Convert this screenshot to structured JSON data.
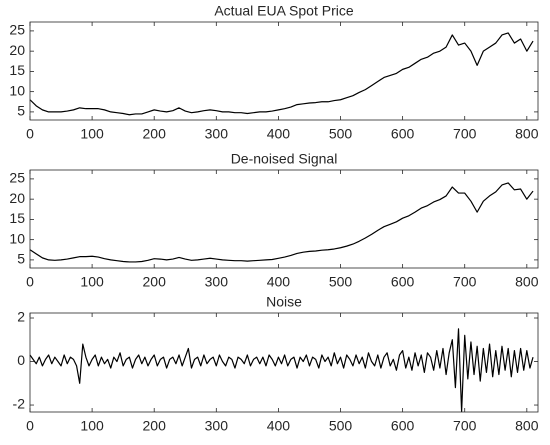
{
  "chart_data": [
    {
      "type": "line",
      "title": "Actual EUA Spot Price",
      "color": "#000000",
      "x": [
        0,
        10,
        20,
        30,
        40,
        50,
        60,
        70,
        80,
        90,
        100,
        110,
        120,
        130,
        140,
        150,
        160,
        170,
        180,
        190,
        200,
        210,
        220,
        230,
        240,
        250,
        260,
        270,
        280,
        290,
        300,
        310,
        320,
        330,
        340,
        350,
        360,
        370,
        380,
        390,
        400,
        410,
        420,
        430,
        440,
        450,
        460,
        470,
        480,
        490,
        500,
        510,
        520,
        530,
        540,
        550,
        560,
        570,
        580,
        590,
        600,
        610,
        620,
        630,
        640,
        650,
        660,
        670,
        680,
        690,
        700,
        710,
        720,
        730,
        740,
        750,
        760,
        770,
        780,
        790,
        800,
        810
      ],
      "values": [
        8,
        6.5,
        5.5,
        5,
        5,
        5,
        5.2,
        5.5,
        6,
        5.8,
        5.8,
        5.8,
        5.5,
        5,
        4.8,
        4.6,
        4.3,
        4.5,
        4.5,
        5,
        5.5,
        5.2,
        5,
        5.3,
        6,
        5.2,
        4.8,
        5,
        5.3,
        5.5,
        5.3,
        5,
        5,
        4.8,
        4.8,
        4.6,
        4.8,
        5,
        5,
        5.2,
        5.5,
        5.8,
        6.2,
        6.8,
        7,
        7.2,
        7.3,
        7.5,
        7.5,
        7.8,
        8,
        8.5,
        9,
        9.8,
        10.5,
        11.5,
        12.5,
        13.5,
        14,
        14.5,
        15.5,
        16,
        17,
        18,
        18.5,
        19.5,
        20,
        21,
        24,
        21.5,
        22,
        20,
        16.5,
        20,
        21,
        22,
        24,
        24.5,
        22,
        23,
        20,
        22.5
      ],
      "xlim": [
        0,
        818
      ],
      "ylim": [
        3,
        27.2
      ],
      "xticks": [
        0,
        100,
        200,
        300,
        400,
        500,
        600,
        700,
        800
      ],
      "yticks": [
        5,
        10,
        15,
        20,
        25
      ]
    },
    {
      "type": "line",
      "title": "De-noised Signal",
      "color": "#000000",
      "x": [
        0,
        10,
        20,
        30,
        40,
        50,
        60,
        70,
        80,
        90,
        100,
        110,
        120,
        130,
        140,
        150,
        160,
        170,
        180,
        190,
        200,
        210,
        220,
        230,
        240,
        250,
        260,
        270,
        280,
        290,
        300,
        310,
        320,
        330,
        340,
        350,
        360,
        370,
        380,
        390,
        400,
        410,
        420,
        430,
        440,
        450,
        460,
        470,
        480,
        490,
        500,
        510,
        520,
        530,
        540,
        550,
        560,
        570,
        580,
        590,
        600,
        610,
        620,
        630,
        640,
        650,
        660,
        670,
        680,
        690,
        700,
        710,
        720,
        730,
        740,
        750,
        760,
        770,
        780,
        790,
        800,
        810
      ],
      "values": [
        7.5,
        6.5,
        5.5,
        5,
        4.9,
        5,
        5.2,
        5.5,
        5.8,
        5.8,
        5.9,
        5.7,
        5.3,
        5,
        4.8,
        4.6,
        4.5,
        4.5,
        4.6,
        4.9,
        5.3,
        5.2,
        5,
        5.2,
        5.6,
        5.2,
        4.9,
        5,
        5.2,
        5.4,
        5.2,
        5,
        4.9,
        4.8,
        4.8,
        4.7,
        4.8,
        4.9,
        5,
        5.1,
        5.4,
        5.7,
        6.1,
        6.6,
        6.9,
        7.1,
        7.2,
        7.4,
        7.5,
        7.7,
        8,
        8.4,
        8.9,
        9.6,
        10.4,
        11.3,
        12.3,
        13.2,
        13.8,
        14.4,
        15.3,
        15.9,
        16.8,
        17.8,
        18.4,
        19.3,
        19.9,
        20.8,
        23,
        21.5,
        21.5,
        19.5,
        16.8,
        19.5,
        20.8,
        21.8,
        23.5,
        24,
        22.3,
        22.5,
        20,
        22
      ],
      "xlim": [
        0,
        818
      ],
      "ylim": [
        3,
        27.2
      ],
      "xticks": [
        0,
        100,
        200,
        300,
        400,
        500,
        600,
        700,
        800
      ],
      "yticks": [
        5,
        10,
        15,
        20,
        25
      ]
    },
    {
      "type": "line",
      "title": "Noise",
      "color": "#000000",
      "x": [
        0,
        5,
        10,
        15,
        20,
        25,
        30,
        35,
        40,
        45,
        50,
        55,
        60,
        65,
        70,
        75,
        80,
        85,
        90,
        95,
        100,
        105,
        110,
        115,
        120,
        125,
        130,
        135,
        140,
        145,
        150,
        155,
        160,
        165,
        170,
        175,
        180,
        185,
        190,
        195,
        200,
        205,
        210,
        215,
        220,
        225,
        230,
        235,
        240,
        245,
        250,
        255,
        260,
        265,
        270,
        275,
        280,
        285,
        290,
        295,
        300,
        305,
        310,
        315,
        320,
        325,
        330,
        335,
        340,
        345,
        350,
        355,
        360,
        365,
        370,
        375,
        380,
        385,
        390,
        395,
        400,
        405,
        410,
        415,
        420,
        425,
        430,
        435,
        440,
        445,
        450,
        455,
        460,
        465,
        470,
        475,
        480,
        485,
        490,
        495,
        500,
        505,
        510,
        515,
        520,
        525,
        530,
        535,
        540,
        545,
        550,
        555,
        560,
        565,
        570,
        575,
        580,
        585,
        590,
        595,
        600,
        605,
        610,
        615,
        620,
        625,
        630,
        635,
        640,
        645,
        650,
        655,
        660,
        665,
        670,
        675,
        680,
        685,
        690,
        695,
        700,
        705,
        710,
        715,
        720,
        725,
        730,
        735,
        740,
        745,
        750,
        755,
        760,
        765,
        770,
        775,
        780,
        785,
        790,
        795,
        800,
        805,
        810
      ],
      "values": [
        0.3,
        0.1,
        -0.1,
        0.2,
        -0.2,
        0.1,
        0.3,
        -0.1,
        0.2,
        0,
        -0.2,
        0.3,
        -0.1,
        0.2,
        0.1,
        -0.2,
        -1.0,
        0.8,
        0.2,
        -0.2,
        0.1,
        0.3,
        -0.2,
        0.2,
        -0.1,
        0.1,
        -0.3,
        0.2,
        0,
        0.4,
        -0.2,
        0.1,
        0.2,
        -0.3,
        0.1,
        0.3,
        -0.1,
        0.2,
        -0.2,
        0.1,
        0.3,
        -0.2,
        0.1,
        0.2,
        -0.3,
        0.1,
        0.2,
        -0.1,
        0.3,
        -0.2,
        0.2,
        0.6,
        -0.3,
        0.1,
        0.2,
        -0.2,
        0.3,
        -0.1,
        0.1,
        0.2,
        -0.2,
        0.3,
        0,
        -0.2,
        0.2,
        0.1,
        -0.3,
        0.2,
        0.1,
        -0.1,
        0.3,
        -0.2,
        0.1,
        0.2,
        -0.1,
        0.2,
        -0.2,
        0.3,
        0.1,
        -0.2,
        0.2,
        -0.1,
        0.3,
        -0.2,
        0.1,
        0.2,
        -0.3,
        0.2,
        0,
        0.3,
        -0.2,
        0.2,
        0.1,
        -0.3,
        0.3,
        0,
        0.2,
        -0.2,
        0.4,
        -0.1,
        0.2,
        -0.3,
        0.3,
        0.1,
        -0.2,
        0.3,
        -0.1,
        0.2,
        -0.3,
        0.4,
        0,
        -0.2,
        0.3,
        -0.3,
        0.2,
        0.4,
        -0.2,
        0.1,
        -0.4,
        0.3,
        0.5,
        -0.3,
        0.2,
        -0.4,
        0.4,
        -0.2,
        0.3,
        -0.5,
        0.4,
        0.2,
        -0.4,
        0.5,
        -0.3,
        0.6,
        -0.6,
        0.4,
        1.0,
        -1.2,
        1.5,
        -2.3,
        1.2,
        -0.8,
        0.9,
        -0.6,
        0.7,
        -0.9,
        0.6,
        -0.5,
        0.8,
        -0.7,
        0.5,
        -0.6,
        0.7,
        -0.4,
        0.6,
        -0.7,
        0.5,
        -0.5,
        0.6,
        -0.4,
        0.5,
        -0.3,
        0.2
      ],
      "xlim": [
        0,
        818
      ],
      "ylim": [
        -2.32,
        2.23
      ],
      "xticks": [
        0,
        100,
        200,
        300,
        400,
        500,
        600,
        700,
        800
      ],
      "yticks": [
        -2,
        0,
        2
      ]
    }
  ]
}
